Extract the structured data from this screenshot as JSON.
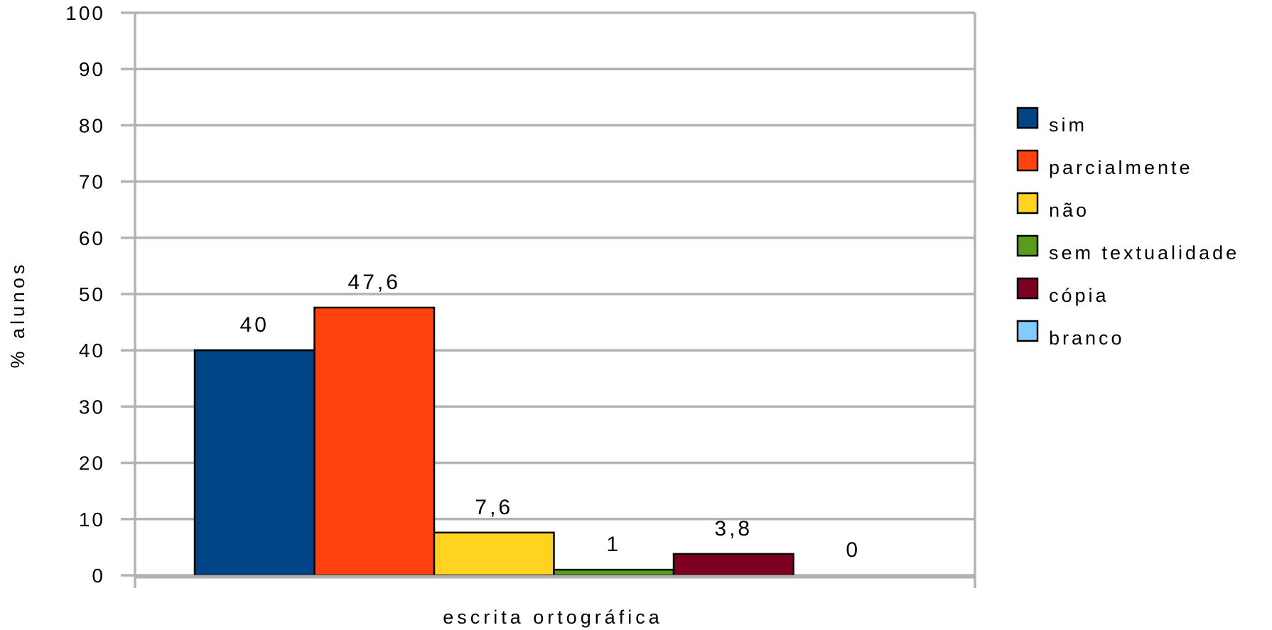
{
  "chart_data": {
    "type": "bar",
    "categories": [
      "escrita ortográfica"
    ],
    "series": [
      {
        "name": "sim",
        "values": [
          40
        ],
        "color": "#004586",
        "label": "40"
      },
      {
        "name": "parcialmente",
        "values": [
          47.6
        ],
        "color": "#ff420e",
        "label": "47,6"
      },
      {
        "name": "não",
        "values": [
          7.6
        ],
        "color": "#ffd320",
        "label": "7,6"
      },
      {
        "name": "sem textualidade",
        "values": [
          1
        ],
        "color": "#579d1c",
        "label": "1"
      },
      {
        "name": "cópia",
        "values": [
          3.8
        ],
        "color": "#7e0021",
        "label": "3,8"
      },
      {
        "name": "branco",
        "values": [
          0
        ],
        "color": "#83caff",
        "label": "0"
      }
    ],
    "xlabel": "escrita ortográfica",
    "ylabel": "% alunos",
    "ylim": [
      0,
      100
    ],
    "yticks": [
      0,
      10,
      20,
      30,
      40,
      50,
      60,
      70,
      80,
      90,
      100
    ],
    "grid": true,
    "legend_position": "right",
    "gridline_color": "#b3b3b3"
  }
}
